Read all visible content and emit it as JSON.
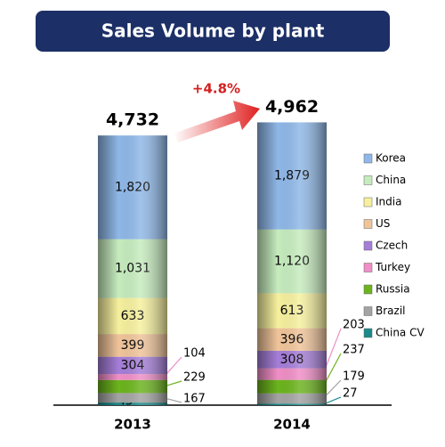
{
  "chart_data": {
    "type": "stacked_bar",
    "title": "Sales Volume by plant",
    "categories": [
      "2013",
      "2014"
    ],
    "series": [
      {
        "name": "Korea",
        "color": "#8fb8e8",
        "values": [
          1820,
          1879
        ],
        "value_labels": [
          "1,820",
          "1,879"
        ]
      },
      {
        "name": "China",
        "color": "#c6ecbe",
        "values": [
          1031,
          1120
        ],
        "value_labels": [
          "1,031",
          "1,120"
        ]
      },
      {
        "name": "India",
        "color": "#f6f09e",
        "values": [
          633,
          613
        ]
      },
      {
        "name": "US",
        "color": "#f0c49a",
        "values": [
          399,
          396
        ]
      },
      {
        "name": "Czech",
        "color": "#a57ed8",
        "values": [
          304,
          308
        ]
      },
      {
        "name": "Turkey",
        "color": "#f08ec6",
        "values": [
          104,
          203
        ]
      },
      {
        "name": "Russia",
        "color": "#6cb41e",
        "values": [
          229,
          237
        ]
      },
      {
        "name": "Brazil",
        "color": "#a4a4a4",
        "values": [
          167,
          179
        ]
      },
      {
        "name": "China CV",
        "color": "#1a8a8a",
        "values": [
          45,
          27
        ]
      }
    ],
    "totals": [
      4732,
      4962
    ],
    "total_labels": [
      "4,732",
      "4,962"
    ],
    "annotation": "+4.8%"
  }
}
